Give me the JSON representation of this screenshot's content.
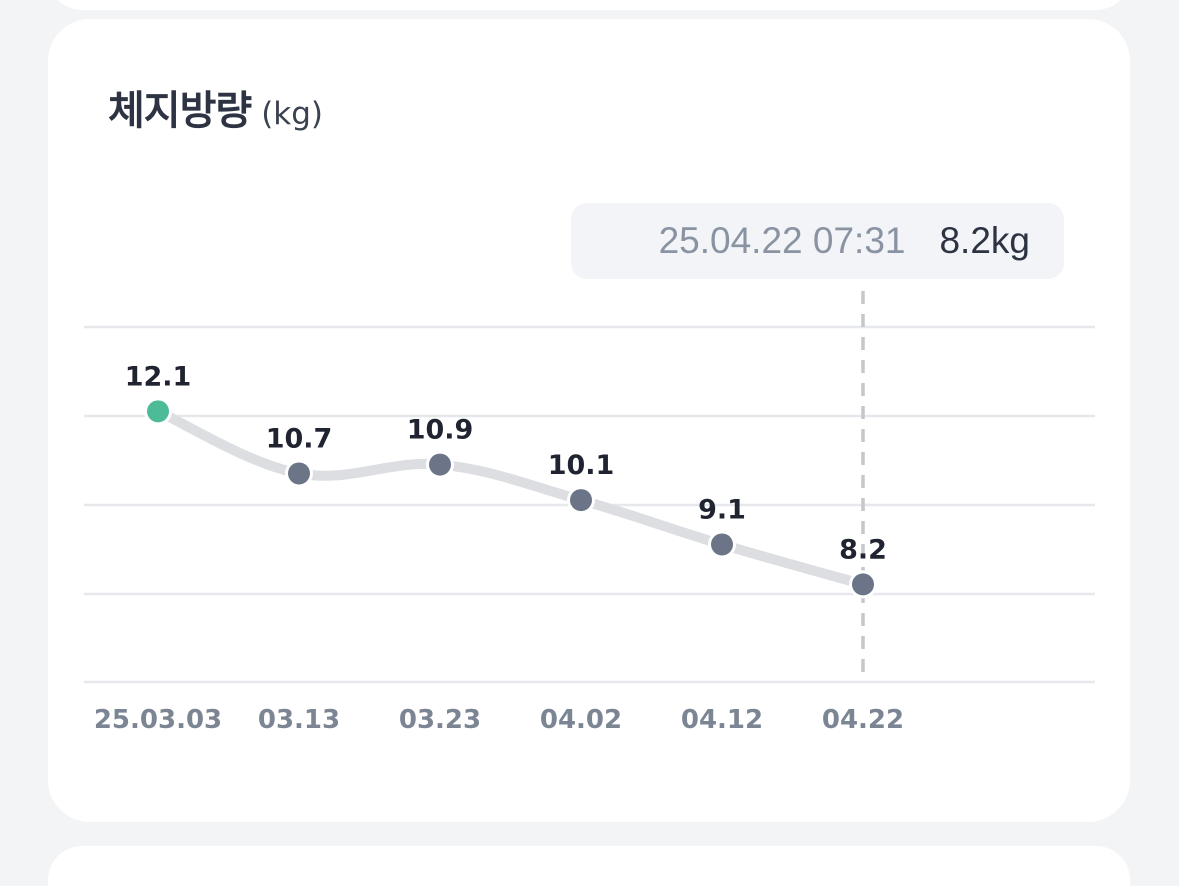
{
  "card": {
    "title": "체지방량",
    "unit": "(kg)"
  },
  "tooltip": {
    "datetime": "25.04.22 07:31",
    "value": "8.2kg"
  },
  "colors": {
    "first_point": "#4dbb98",
    "point": "#6b7587",
    "line": "#dcdee2",
    "grid": "#e6e8eb",
    "guide": "#c4c7cc"
  },
  "chart_data": {
    "type": "line",
    "categories": [
      "25.03.03",
      "03.13",
      "03.23",
      "04.02",
      "04.12",
      "04.22"
    ],
    "series": [
      {
        "values": [
          12.1,
          10.7,
          10.9,
          10.1,
          9.1,
          8.2
        ],
        "labels": [
          "12.1",
          "10.7",
          "10.9",
          "10.1",
          "9.1",
          "8.2"
        ]
      }
    ],
    "title": "체지방량",
    "unit": "(kg)",
    "highlight_index": 5,
    "ylim": [
      6.0,
      14.0
    ],
    "grid": true,
    "xlabel": "",
    "ylabel": ""
  }
}
